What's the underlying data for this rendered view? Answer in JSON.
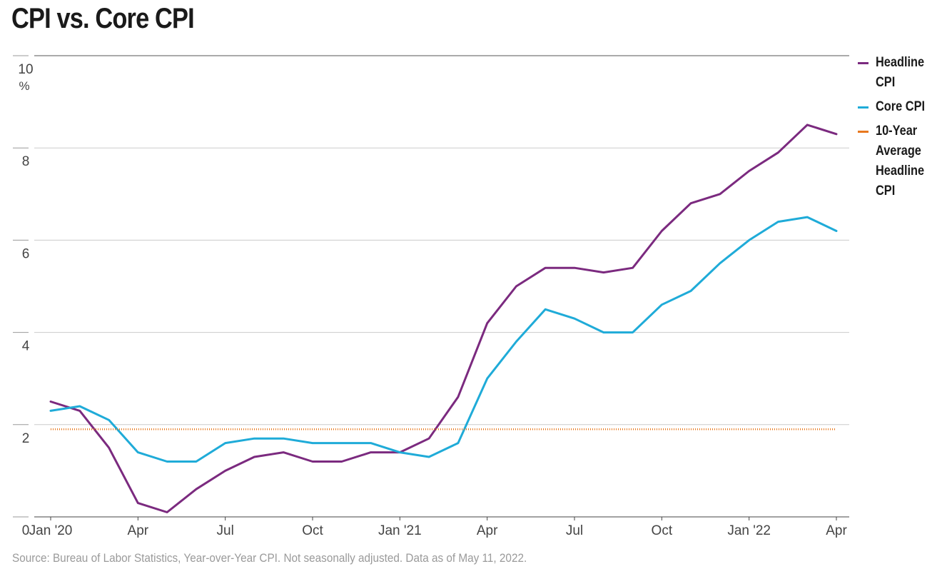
{
  "title": "CPI vs. Core CPI",
  "source": "Source: Bureau of Labor Statistics, Year-over-Year CPI. Not seasonally adjusted. Data as of May 11, 2022.",
  "chart_data": {
    "type": "line",
    "title": "CPI vs. Core CPI",
    "xlabel": "",
    "ylabel": "",
    "y_unit": "%",
    "ylim": [
      0,
      10
    ],
    "y_ticks": [
      0,
      2,
      4,
      6,
      8,
      10
    ],
    "y_tick_labels": [
      "0",
      "2",
      "4",
      "6",
      "8",
      "10"
    ],
    "x_tick_labels": [
      {
        "index": 0,
        "label": "Jan '20"
      },
      {
        "index": 3,
        "label": "Apr"
      },
      {
        "index": 6,
        "label": "Jul"
      },
      {
        "index": 9,
        "label": "Oct"
      },
      {
        "index": 12,
        "label": "Jan '21"
      },
      {
        "index": 15,
        "label": "Apr"
      },
      {
        "index": 18,
        "label": "Jul"
      },
      {
        "index": 21,
        "label": "Oct"
      },
      {
        "index": 24,
        "label": "Jan '22"
      },
      {
        "index": 27,
        "label": "Apr"
      }
    ],
    "x": [
      "2020-01",
      "2020-02",
      "2020-03",
      "2020-04",
      "2020-05",
      "2020-06",
      "2020-07",
      "2020-08",
      "2020-09",
      "2020-10",
      "2020-11",
      "2020-12",
      "2021-01",
      "2021-02",
      "2021-03",
      "2021-04",
      "2021-05",
      "2021-06",
      "2021-07",
      "2021-08",
      "2021-09",
      "2021-10",
      "2021-11",
      "2021-12",
      "2022-01",
      "2022-02",
      "2022-03",
      "2022-04"
    ],
    "series": [
      {
        "name": "Headline CPI",
        "color": "#7b2a7f",
        "values": [
          2.5,
          2.3,
          1.5,
          0.3,
          0.1,
          0.6,
          1.0,
          1.3,
          1.4,
          1.2,
          1.2,
          1.4,
          1.4,
          1.7,
          2.6,
          4.2,
          5.0,
          5.4,
          5.4,
          5.3,
          5.4,
          6.2,
          6.8,
          7.0,
          7.5,
          7.9,
          8.5,
          8.3
        ]
      },
      {
        "name": "Core CPI",
        "color": "#1fabd8",
        "values": [
          2.3,
          2.4,
          2.1,
          1.4,
          1.2,
          1.2,
          1.6,
          1.7,
          1.7,
          1.6,
          1.6,
          1.6,
          1.4,
          1.3,
          1.6,
          3.0,
          3.8,
          4.5,
          4.3,
          4.0,
          4.0,
          4.6,
          4.9,
          5.5,
          6.0,
          6.4,
          6.5,
          6.2
        ]
      },
      {
        "name": "10-Year Average Headline CPI",
        "color": "#e8781e",
        "style": "dotted",
        "values": [
          1.9,
          1.9,
          1.9,
          1.9,
          1.9,
          1.9,
          1.9,
          1.9,
          1.9,
          1.9,
          1.9,
          1.9,
          1.9,
          1.9,
          1.9,
          1.9,
          1.9,
          1.9,
          1.9,
          1.9,
          1.9,
          1.9,
          1.9,
          1.9,
          1.9,
          1.9,
          1.9,
          1.9
        ]
      }
    ],
    "grid": true,
    "legend": "right"
  }
}
